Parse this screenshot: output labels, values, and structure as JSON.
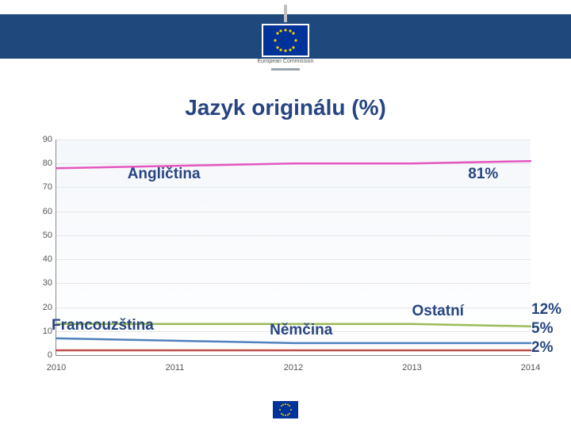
{
  "header": {
    "band_color": "#1f497d",
    "logo_text": "European\nCommission"
  },
  "title": "Jazyk originálu (%)",
  "chart": {
    "type": "line",
    "ylim": [
      0,
      90
    ],
    "ytick_step": 10,
    "xcategories": [
      "2010",
      "2011",
      "2012",
      "2013",
      "2014"
    ],
    "background_gradient_from": "#f4f7fb",
    "background_gradient_to": "#ffffff",
    "grid_color": "#e6e6e6",
    "axis_color": "#888888",
    "tick_font_size": 11,
    "tick_color": "#555555",
    "series": [
      {
        "name": "Angličtina",
        "color": "#e556c0",
        "width": 2.5,
        "values": [
          78,
          79,
          80,
          80,
          81
        ],
        "label_pos": {
          "x_pct": 15,
          "y_val": 75
        },
        "end_value_label": "81%"
      },
      {
        "name": "Francouzština",
        "color": "#4f81bd",
        "width": 2.5,
        "values": [
          7,
          6,
          5,
          5,
          5
        ],
        "label_pos": {
          "x_pct": -1,
          "y_val": 12
        },
        "end_value_label": "5%"
      },
      {
        "name": "Němčina",
        "color": "#c0504d",
        "width": 2.5,
        "values": [
          2,
          2,
          2,
          2,
          2
        ],
        "label_pos": {
          "x_pct": 45,
          "y_val": 10
        },
        "end_value_label": "2%"
      },
      {
        "name": "Ostatní",
        "color": "#9bbb59",
        "width": 2.5,
        "values": [
          13,
          13,
          13,
          13,
          12
        ],
        "label_pos": {
          "x_pct": 75,
          "y_val": 18
        },
        "end_value_label": "12%"
      }
    ],
    "label_font_size": 19,
    "label_color": "#274582",
    "value_label_order": [
      "Ostatní",
      "Francouzština",
      "Němčina"
    ]
  },
  "footer": {
    "flag_color": "#003399"
  }
}
